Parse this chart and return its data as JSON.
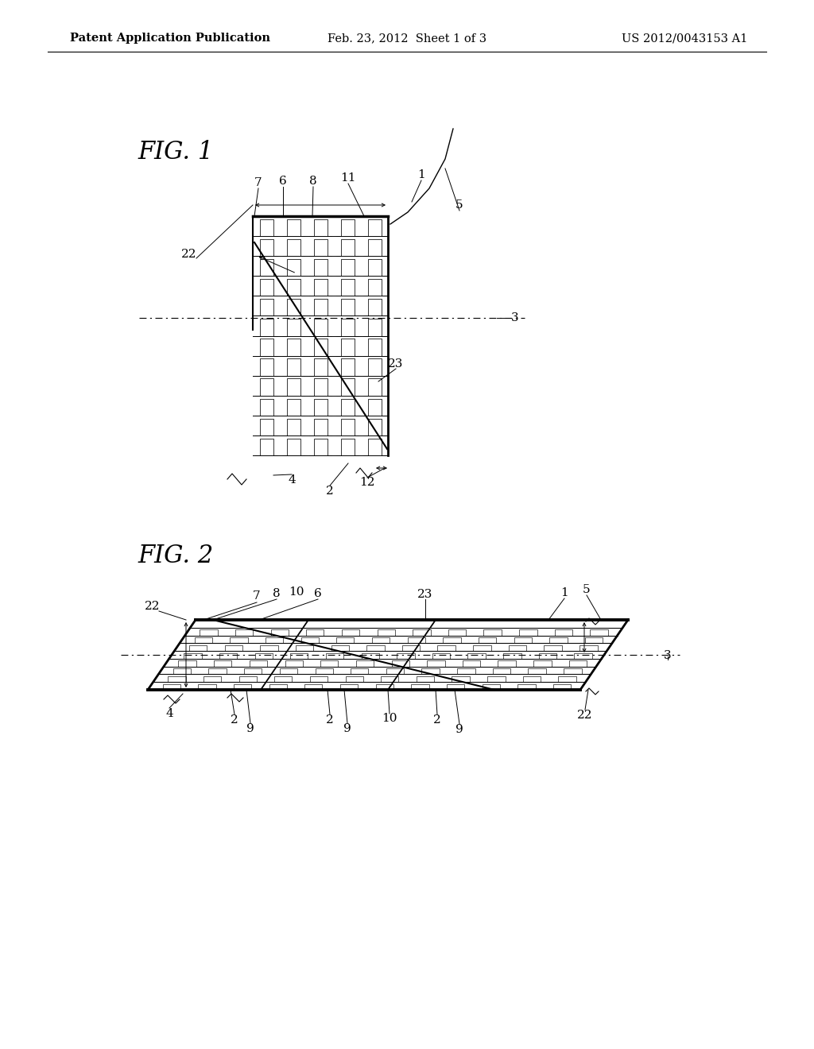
{
  "bg_color": "#ffffff",
  "line_color": "#000000",
  "header_left": "Patent Application Publication",
  "header_mid": "Feb. 23, 2012  Sheet 1 of 3",
  "header_right": "US 2012/0043153 A1",
  "fig1_label": "FIG. 1",
  "fig2_label": "FIG. 2",
  "header_fontsize": 10.5,
  "label_fontsize": 22,
  "ref_fontsize": 11
}
